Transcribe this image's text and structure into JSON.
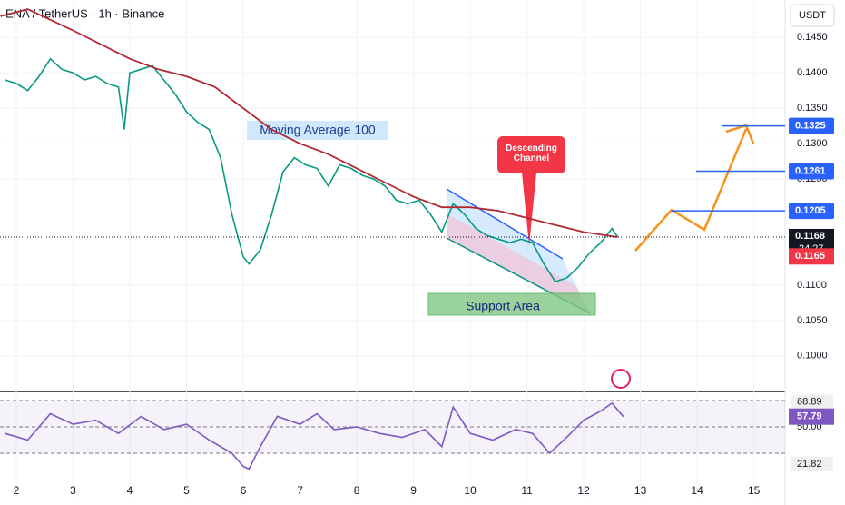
{
  "chart_data": [
    {
      "type": "line",
      "title": "ENA / TetherUS · 1h · Binance",
      "currency": "USDT",
      "countdown": "24:27",
      "annotations": [
        "Moving Average 100",
        "Descending Channel",
        "Support Area"
      ],
      "xlim": [
        1.712,
        15.55
      ],
      "xticks": [
        2,
        3,
        4,
        5,
        6,
        7,
        8,
        9,
        10,
        11,
        12,
        13,
        14,
        15
      ],
      "ylim": [
        0.0951,
        0.1503
      ],
      "yticks": [
        {
          "value": 0.145,
          "label": "0.1450"
        },
        {
          "value": 0.14,
          "label": "0.1400"
        },
        {
          "value": 0.135,
          "label": "0.1350"
        },
        {
          "value": 0.13,
          "label": "0.1300"
        },
        {
          "value": 0.125,
          "label": "0.1250"
        },
        {
          "value": 0.11,
          "label": "0.1100"
        },
        {
          "value": 0.105,
          "label": "0.1050"
        },
        {
          "value": 0.1,
          "label": "0.1000"
        }
      ],
      "levels": [
        0.1325,
        0.1261,
        0.1205
      ],
      "level_color": "#2962ff",
      "markers": [
        {
          "value": 0.1165,
          "color": "#f23645"
        }
      ],
      "series": [
        {
          "name": "Close",
          "color": "#089981",
          "x": [
            1.8,
            2.0,
            2.2,
            2.4,
            2.6,
            2.8,
            3.0,
            3.2,
            3.4,
            3.6,
            3.8,
            3.9,
            4.0,
            4.2,
            4.4,
            4.6,
            4.8,
            5.0,
            5.2,
            5.4,
            5.6,
            5.8,
            6.0,
            6.1,
            6.3,
            6.5,
            6.7,
            6.9,
            7.1,
            7.3,
            7.5,
            7.7,
            7.9,
            8.1,
            8.3,
            8.5,
            8.7,
            8.9,
            9.1,
            9.3,
            9.5,
            9.7,
            9.9,
            10.1,
            10.3,
            10.5,
            10.7,
            10.9,
            11.1,
            11.3,
            11.5,
            11.7,
            11.9,
            12.1,
            12.3,
            12.5,
            12.6
          ],
          "values": [
            0.139,
            0.1385,
            0.1375,
            0.1395,
            0.142,
            0.1405,
            0.14,
            0.139,
            0.1395,
            0.1385,
            0.138,
            0.132,
            0.14,
            0.1405,
            0.141,
            0.139,
            0.137,
            0.1345,
            0.133,
            0.132,
            0.128,
            0.12,
            0.114,
            0.113,
            0.115,
            0.12,
            0.126,
            0.128,
            0.127,
            0.1265,
            0.124,
            0.127,
            0.1265,
            0.1255,
            0.125,
            0.124,
            0.122,
            0.1215,
            0.122,
            0.12,
            0.1175,
            0.1215,
            0.12,
            0.118,
            0.117,
            0.1165,
            0.116,
            0.1165,
            0.116,
            0.113,
            0.1105,
            0.111,
            0.1125,
            0.1145,
            0.116,
            0.118,
            0.1168
          ]
        },
        {
          "name": "MA 100",
          "color": "#b22833",
          "x": [
            1.72,
            2.2,
            3.0,
            4.0,
            4.5,
            5.0,
            5.5,
            6.0,
            6.5,
            7.0,
            7.5,
            8.0,
            8.5,
            9.0,
            9.5,
            10.0,
            10.5,
            11.0,
            11.5,
            12.0,
            12.6
          ],
          "values": [
            0.148,
            0.149,
            0.146,
            0.142,
            0.1405,
            0.1395,
            0.138,
            0.135,
            0.132,
            0.13,
            0.1285,
            0.1265,
            0.1245,
            0.1225,
            0.121,
            0.121,
            0.1205,
            0.1195,
            0.1185,
            0.1175,
            0.1168
          ]
        }
      ]
    },
    {
      "type": "line",
      "ylim": [
        -3.8,
        76.2
      ],
      "yticks": [
        {
          "value": 50,
          "label": "50.00"
        }
      ],
      "guide_lines": [
        70,
        50,
        30
      ],
      "markers": [
        68.89,
        21.82
      ],
      "series": [
        {
          "name": "RSI",
          "color": "#7e57c2",
          "x": [
            1.8,
            2.2,
            2.6,
            3.0,
            3.4,
            3.8,
            4.2,
            4.6,
            5.0,
            5.4,
            5.8,
            6.0,
            6.1,
            6.3,
            6.6,
            7.0,
            7.3,
            7.6,
            8.0,
            8.4,
            8.8,
            9.2,
            9.5,
            9.7,
            10.0,
            10.4,
            10.8,
            11.1,
            11.4,
            11.7,
            12.0,
            12.3,
            12.5,
            12.7
          ],
          "values": [
            45,
            40,
            60,
            52,
            55,
            45,
            58,
            48,
            52,
            40,
            30,
            20,
            18,
            35,
            58,
            52,
            60,
            48,
            50,
            45,
            42,
            48,
            35,
            65,
            45,
            40,
            48,
            45,
            30,
            42,
            55,
            62,
            68,
            57.79
          ]
        }
      ]
    }
  ]
}
